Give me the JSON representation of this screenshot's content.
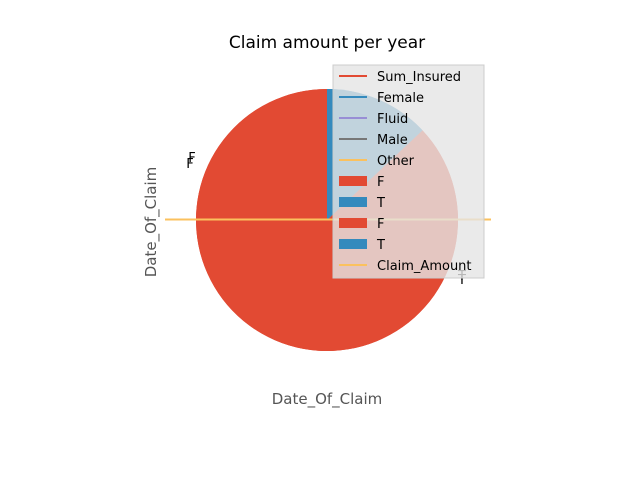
{
  "chart_data": {
    "type": "pie",
    "title": "Claim amount per year",
    "xlabel": "Date_Of_Claim",
    "ylabel": "Date_Of_Claim",
    "pies": [
      {
        "name": "pie-one",
        "slices": [
          {
            "label": "F",
            "value": 87,
            "color": "#E24A33"
          },
          {
            "label": "T",
            "value": 13,
            "color": "#348ABD"
          }
        ]
      },
      {
        "name": "pie-two",
        "slices": [
          {
            "label": "F",
            "value": 87,
            "color": "#E24A33"
          },
          {
            "label": "T",
            "value": 13,
            "color": "#348ABD"
          }
        ]
      }
    ],
    "lines": [
      {
        "name": "Sum_Insured",
        "color": "#E24A33"
      },
      {
        "name": "Female",
        "color": "#348ABD"
      },
      {
        "name": "Fluid",
        "color": "#988ED5"
      },
      {
        "name": "Male",
        "color": "#777777"
      },
      {
        "name": "Other",
        "color": "#FBC15E"
      },
      {
        "name": "Claim_Amount",
        "color": "#FBC15E"
      }
    ],
    "legend": {
      "placement": "top-right",
      "entries": [
        {
          "label": "Sum_Insured",
          "kind": "line",
          "color": "#E24A33"
        },
        {
          "label": "Female",
          "kind": "line",
          "color": "#348ABD"
        },
        {
          "label": "Fluid",
          "kind": "line",
          "color": "#988ED5"
        },
        {
          "label": "Male",
          "kind": "line",
          "color": "#777777"
        },
        {
          "label": "Other",
          "kind": "line",
          "color": "#FBC15E"
        },
        {
          "label": "F",
          "kind": "patch",
          "color": "#E24A33"
        },
        {
          "label": "T",
          "kind": "patch",
          "color": "#348ABD"
        },
        {
          "label": "F",
          "kind": "patch",
          "color": "#E24A33"
        },
        {
          "label": "T",
          "kind": "patch",
          "color": "#348ABD"
        },
        {
          "label": "Claim_Amount",
          "kind": "line",
          "color": "#FBC15E"
        }
      ]
    }
  }
}
